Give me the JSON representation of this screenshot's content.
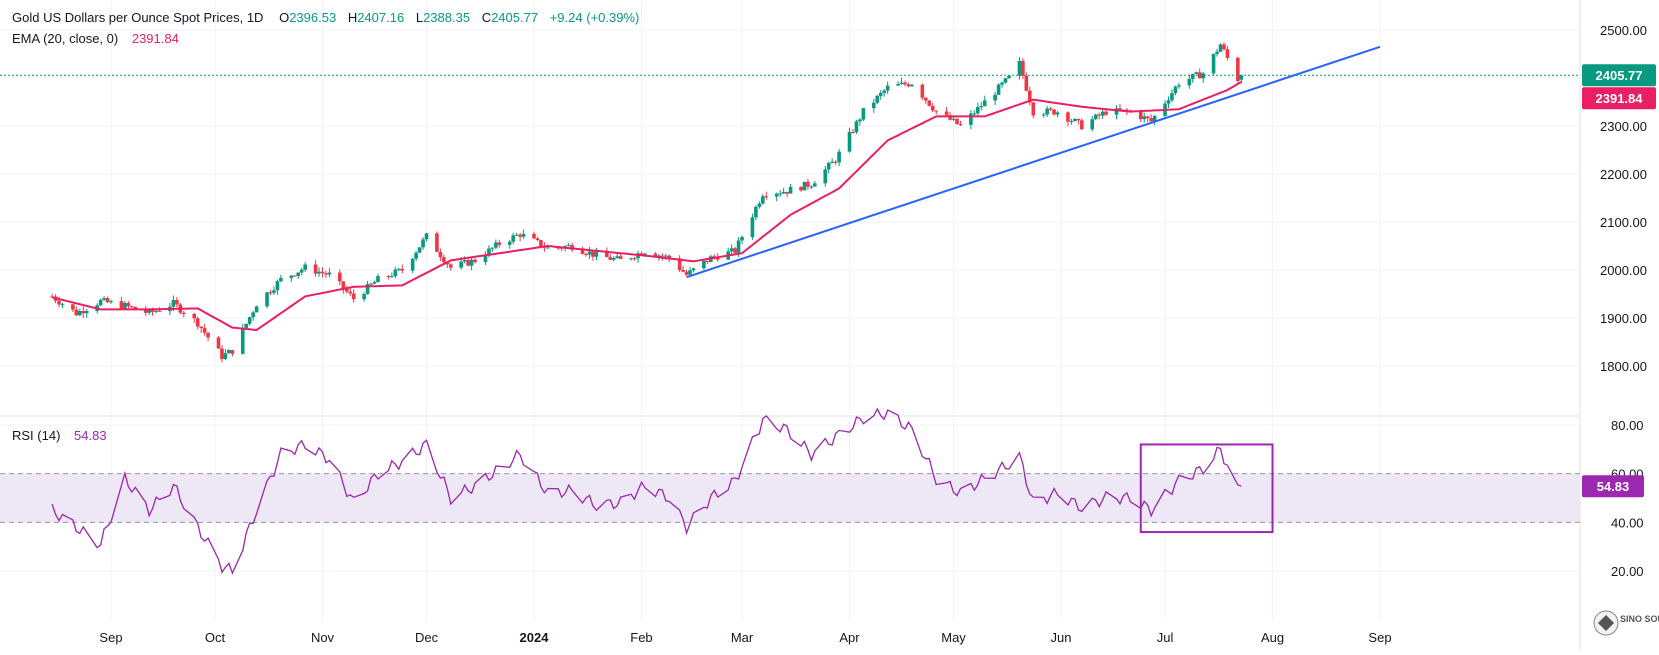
{
  "header": {
    "symbol": "Gold US Dollars per Ounce Spot Prices, 1D",
    "o_label": "O",
    "o_value": "2396.53",
    "h_label": "H",
    "h_value": "2407.16",
    "l_label": "L",
    "l_value": "2388.35",
    "c_label": "C",
    "c_value": "2405.77",
    "change": "+9.24 (+0.39%)"
  },
  "ema_legend": {
    "label": "EMA (20, close, 0)",
    "value": "2391.84"
  },
  "rsi_legend": {
    "label": "RSI (14)",
    "value": "54.83"
  },
  "price_tags": {
    "last": "2405.77",
    "ema": "2391.84",
    "rsi": "54.83"
  },
  "watermark": "SINO SOUND",
  "colors": {
    "up": "#089981",
    "down": "#f23645",
    "ema": "#e91e63",
    "trend": "#2962ff",
    "rsi": "#9c27b0",
    "rsi_band": "#ede7f6",
    "box": "#9c27b0",
    "grid": "#f0f3fa",
    "last_line": "#089981"
  },
  "chart_data": [
    {
      "type": "candlestick",
      "title": "Gold US Dollars per Ounce Spot Prices, 1D",
      "x_ticks": [
        "Sep",
        "Oct",
        "Nov",
        "Dec",
        "2024",
        "Jan",
        "Feb",
        "Mar",
        "Apr",
        "May",
        "Jun",
        "Jul",
        "Aug",
        "Sep"
      ],
      "y_ticks": [
        2500,
        2400,
        2300,
        2200,
        2100,
        2000,
        1900,
        1800
      ],
      "y_tick_labels": [
        "2500.00",
        "2400.00",
        "2300.00",
        "2200.00",
        "2100.00",
        "2000.00",
        "1900.00",
        "1800.00"
      ],
      "ylim": [
        1760,
        2560
      ],
      "grid": true,
      "last_price": 2405.77,
      "ohlc_last": {
        "open": 2396.53,
        "high": 2407.16,
        "low": 2388.35,
        "close": 2405.77
      },
      "price_path": [
        [
          "2023-08-15",
          1945
        ],
        [
          "2023-08-22",
          1910
        ],
        [
          "2023-08-29",
          1935
        ],
        [
          "2023-09-05",
          1925
        ],
        [
          "2023-09-12",
          1910
        ],
        [
          "2023-09-19",
          1930
        ],
        [
          "2023-09-26",
          1890
        ],
        [
          "2023-10-03",
          1820
        ],
        [
          "2023-10-06",
          1832
        ],
        [
          "2023-10-13",
          1930
        ],
        [
          "2023-10-20",
          1980
        ],
        [
          "2023-10-27",
          2005
        ],
        [
          "2023-11-03",
          1990
        ],
        [
          "2023-11-10",
          1940
        ],
        [
          "2023-11-17",
          1980
        ],
        [
          "2023-11-24",
          2000
        ],
        [
          "2023-12-01",
          2070
        ],
        [
          "2023-12-08",
          2005
        ],
        [
          "2023-12-15",
          2020
        ],
        [
          "2023-12-22",
          2055
        ],
        [
          "2023-12-28",
          2075
        ],
        [
          "2024-01-05",
          2045
        ],
        [
          "2024-01-12",
          2050
        ],
        [
          "2024-01-19",
          2030
        ],
        [
          "2024-01-26",
          2020
        ],
        [
          "2024-02-02",
          2040
        ],
        [
          "2024-02-09",
          2025
        ],
        [
          "2024-02-14",
          1990
        ],
        [
          "2024-02-21",
          2025
        ],
        [
          "2024-02-28",
          2040
        ],
        [
          "2024-03-07",
          2160
        ],
        [
          "2024-03-14",
          2165
        ],
        [
          "2024-03-21",
          2180
        ],
        [
          "2024-03-28",
          2230
        ],
        [
          "2024-04-05",
          2330
        ],
        [
          "2024-04-12",
          2380
        ],
        [
          "2024-04-19",
          2390
        ],
        [
          "2024-04-26",
          2330
        ],
        [
          "2024-05-03",
          2300
        ],
        [
          "2024-05-10",
          2350
        ],
        [
          "2024-05-17",
          2400
        ],
        [
          "2024-05-20",
          2430
        ],
        [
          "2024-05-24",
          2330
        ],
        [
          "2024-05-31",
          2330
        ],
        [
          "2024-06-07",
          2300
        ],
        [
          "2024-06-14",
          2330
        ],
        [
          "2024-06-21",
          2330
        ],
        [
          "2024-06-27",
          2310
        ],
        [
          "2024-07-05",
          2390
        ],
        [
          "2024-07-12",
          2410
        ],
        [
          "2024-07-17",
          2470
        ],
        [
          "2024-07-22",
          2398
        ],
        [
          "2024-07-23",
          2405.77
        ]
      ],
      "series": [
        {
          "name": "EMA (20, close, 0)",
          "points": [
            [
              "2023-08-15",
              1943
            ],
            [
              "2023-08-29",
              1918
            ],
            [
              "2023-09-12",
              1918
            ],
            [
              "2023-09-26",
              1920
            ],
            [
              "2023-10-06",
              1880
            ],
            [
              "2023-10-13",
              1875
            ],
            [
              "2023-10-27",
              1945
            ],
            [
              "2023-11-10",
              1965
            ],
            [
              "2023-11-24",
              1968
            ],
            [
              "2023-12-08",
              2020
            ],
            [
              "2023-12-22",
              2035
            ],
            [
              "2024-01-05",
              2050
            ],
            [
              "2024-01-19",
              2040
            ],
            [
              "2024-02-02",
              2030
            ],
            [
              "2024-02-16",
              2018
            ],
            [
              "2024-03-01",
              2035
            ],
            [
              "2024-03-15",
              2115
            ],
            [
              "2024-03-29",
              2170
            ],
            [
              "2024-04-12",
              2270
            ],
            [
              "2024-04-26",
              2320
            ],
            [
              "2024-05-10",
              2320
            ],
            [
              "2024-05-24",
              2355
            ],
            [
              "2024-06-07",
              2340
            ],
            [
              "2024-06-21",
              2330
            ],
            [
              "2024-07-05",
              2335
            ],
            [
              "2024-07-19",
              2375
            ],
            [
              "2024-07-23",
              2391.84
            ]
          ]
        },
        {
          "name": "Trend line",
          "points": [
            [
              "2024-02-14",
              1985
            ],
            [
              "2024-09-01",
              2465
            ]
          ]
        }
      ]
    },
    {
      "type": "line",
      "title": "RSI (14)",
      "y_ticks": [
        80,
        60,
        40,
        20
      ],
      "y_tick_labels": [
        "80.00",
        "60.00",
        "40.00",
        "20.00"
      ],
      "ylim": [
        15,
        90
      ],
      "band": [
        40,
        60
      ],
      "last_value": 54.83,
      "highlight_box": {
        "x": [
          "2024-06-24",
          "2024-08-01"
        ],
        "y": [
          36,
          72
        ]
      },
      "series": [
        {
          "name": "RSI (14)",
          "points": [
            [
              "2023-08-15",
              45
            ],
            [
              "2023-08-22",
              38
            ],
            [
              "2023-08-29",
              31
            ],
            [
              "2023-09-05",
              58
            ],
            [
              "2023-09-12",
              45
            ],
            [
              "2023-09-19",
              55
            ],
            [
              "2023-09-26",
              38
            ],
            [
              "2023-10-03",
              22
            ],
            [
              "2023-10-06",
              20
            ],
            [
              "2023-10-13",
              45
            ],
            [
              "2023-10-20",
              68
            ],
            [
              "2023-10-27",
              72
            ],
            [
              "2023-11-03",
              66
            ],
            [
              "2023-11-10",
              48
            ],
            [
              "2023-11-17",
              60
            ],
            [
              "2023-11-24",
              65
            ],
            [
              "2023-12-01",
              72
            ],
            [
              "2023-12-08",
              50
            ],
            [
              "2023-12-15",
              55
            ],
            [
              "2023-12-22",
              62
            ],
            [
              "2023-12-28",
              68
            ],
            [
              "2024-01-05",
              52
            ],
            [
              "2024-01-12",
              53
            ],
            [
              "2024-01-19",
              47
            ],
            [
              "2024-01-26",
              48
            ],
            [
              "2024-02-02",
              55
            ],
            [
              "2024-02-09",
              50
            ],
            [
              "2024-02-14",
              38
            ],
            [
              "2024-02-21",
              50
            ],
            [
              "2024-02-28",
              57
            ],
            [
              "2024-03-07",
              82
            ],
            [
              "2024-03-14",
              78
            ],
            [
              "2024-03-21",
              68
            ],
            [
              "2024-03-28",
              75
            ],
            [
              "2024-04-05",
              83
            ],
            [
              "2024-04-12",
              85
            ],
            [
              "2024-04-19",
              78
            ],
            [
              "2024-04-26",
              58
            ],
            [
              "2024-05-03",
              52
            ],
            [
              "2024-05-10",
              58
            ],
            [
              "2024-05-17",
              64
            ],
            [
              "2024-05-20",
              67
            ],
            [
              "2024-05-24",
              48
            ],
            [
              "2024-05-31",
              52
            ],
            [
              "2024-06-07",
              46
            ],
            [
              "2024-06-14",
              50
            ],
            [
              "2024-06-21",
              50
            ],
            [
              "2024-06-27",
              45
            ],
            [
              "2024-07-05",
              57
            ],
            [
              "2024-07-12",
              62
            ],
            [
              "2024-07-17",
              70
            ],
            [
              "2024-07-22",
              53
            ],
            [
              "2024-07-23",
              54.83
            ]
          ]
        }
      ]
    }
  ]
}
